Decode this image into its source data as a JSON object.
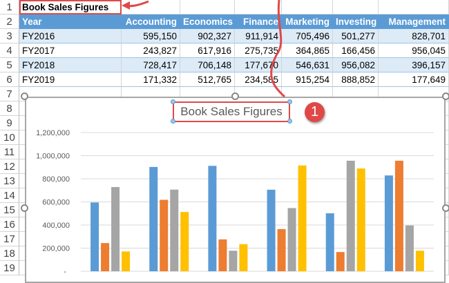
{
  "sheet": {
    "row_numbers": [
      "1",
      "2",
      "3",
      "4",
      "5",
      "6",
      "7",
      "8",
      "9",
      "10",
      "11",
      "12",
      "13",
      "14",
      "15",
      "16",
      "17",
      "18",
      "19"
    ],
    "title_cell": "Book Sales Figures",
    "headers": [
      "Year",
      "Accounting",
      "Economics",
      "Finance",
      "Marketing",
      "Investing",
      "Management"
    ],
    "rows": [
      [
        "FY2016",
        "595,150",
        "902,327",
        "911,914",
        "705,496",
        "501,277",
        "828,701"
      ],
      [
        "FY2017",
        "243,827",
        "617,916",
        "275,735",
        "364,865",
        "166,456",
        "956,045"
      ],
      [
        "FY2018",
        "728,417",
        "706,148",
        "177,670",
        "546,631",
        "956,082",
        "396,157"
      ],
      [
        "FY2019",
        "171,332",
        "512,765",
        "234,585",
        "915,254",
        "888,852",
        "177,649"
      ]
    ]
  },
  "annotation": {
    "badge": "1",
    "color": "#e04848"
  },
  "chart_data": {
    "type": "bar",
    "title": "Book Sales Figures",
    "categories": [
      "Accounting",
      "Economics",
      "Finance",
      "Marketing",
      "Investing",
      "Management"
    ],
    "series": [
      {
        "name": "FY2016",
        "color": "#5b9bd5",
        "values": [
          595150,
          902327,
          911914,
          705496,
          501277,
          828701
        ]
      },
      {
        "name": "FY2017",
        "color": "#ed7d31",
        "values": [
          243827,
          617916,
          275735,
          364865,
          166456,
          956045
        ]
      },
      {
        "name": "FY2018",
        "color": "#a5a5a5",
        "values": [
          728417,
          706148,
          177670,
          546631,
          956082,
          396157
        ]
      },
      {
        "name": "FY2019",
        "color": "#ffc000",
        "values": [
          171332,
          512765,
          234585,
          915254,
          888852,
          177649
        ]
      }
    ],
    "ylim": [
      0,
      1200000
    ],
    "yticks": [
      "-",
      "200,000",
      "400,000",
      "600,000",
      "800,000",
      "1,000,000",
      "1,200,000"
    ],
    "grid": true
  }
}
